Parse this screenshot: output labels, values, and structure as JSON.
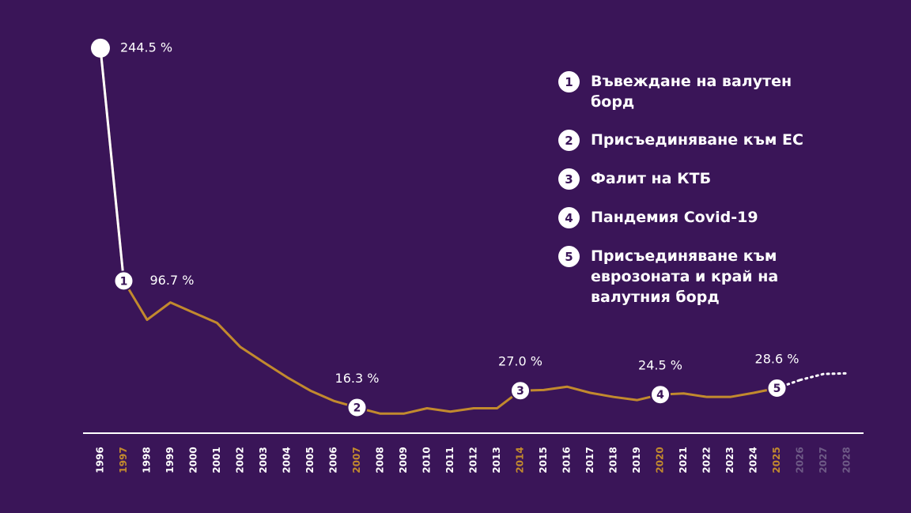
{
  "chart_data": {
    "type": "line",
    "categories": [
      "1996",
      "1997",
      "1998",
      "1999",
      "2000",
      "2001",
      "2002",
      "2003",
      "2004",
      "2005",
      "2006",
      "2007",
      "2008",
      "2009",
      "2010",
      "2011",
      "2012",
      "2013",
      "2014",
      "2015",
      "2016",
      "2017",
      "2018",
      "2019",
      "2020",
      "2021",
      "2022",
      "2023",
      "2024",
      "2025",
      "2026",
      "2027",
      "2028"
    ],
    "series": [
      {
        "color": "#c28a2e",
        "values": [
          244.5,
          96.7,
          72,
          83,
          76.5,
          70,
          54.7,
          45,
          35.5,
          27,
          20.5,
          16.3,
          12.4,
          12.4,
          15.8,
          13.7,
          15.8,
          15.8,
          27.0,
          27.4,
          29.5,
          25.6,
          23,
          21,
          24.5,
          25.2,
          23,
          23,
          25.6,
          28.6,
          null,
          null,
          null
        ],
        "value_labels": [
          "244.5 %",
          "96.7 %",
          null,
          null,
          null,
          null,
          null,
          null,
          null,
          null,
          null,
          "16.3 %",
          null,
          null,
          null,
          null,
          null,
          null,
          "27.0 %",
          null,
          null,
          null,
          null,
          null,
          "24.5 %",
          null,
          null,
          null,
          null,
          "28.6 %",
          null,
          null,
          null
        ]
      },
      {
        "color": "#ffffff",
        "values": [
          null,
          null,
          null,
          null,
          null,
          null,
          null,
          null,
          null,
          null,
          null,
          null,
          null,
          null,
          null,
          null,
          null,
          null,
          null,
          null,
          null,
          null,
          null,
          null,
          null,
          null,
          null,
          null,
          null,
          null,
          33.8,
          37.6,
          38
        ]
      }
    ],
    "ylim": [
      0,
      260
    ],
    "events": [
      {
        "number": "1",
        "label": "Въвеждане на валутен борд",
        "year": "1997"
      },
      {
        "number": "2",
        "label": "Присъединяване към ЕС",
        "year": "2007"
      },
      {
        "number": "3",
        "label": "Фалит на КТБ",
        "year": "2014"
      },
      {
        "number": "4",
        "label": "Пандемия Covid-19",
        "year": "2020"
      },
      {
        "number": "5",
        "label": "Присъединяване към еврозоната и край на валутния борд",
        "year": "2025"
      }
    ]
  }
}
